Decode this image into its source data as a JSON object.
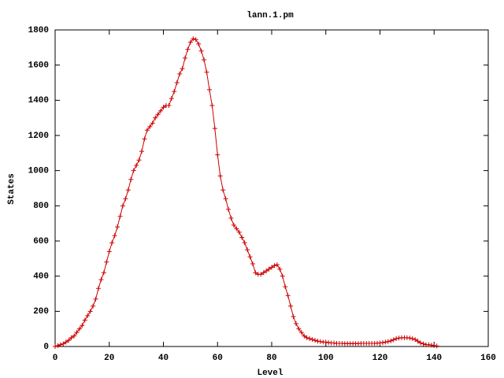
{
  "chart_data": {
    "type": "line",
    "title": "lann.1.pm",
    "xlabel": "Level",
    "ylabel": "States",
    "x": [
      0,
      1,
      2,
      3,
      4,
      5,
      6,
      7,
      8,
      9,
      10,
      11,
      12,
      13,
      14,
      15,
      16,
      17,
      18,
      19,
      20,
      21,
      22,
      23,
      24,
      25,
      26,
      27,
      28,
      29,
      30,
      31,
      32,
      33,
      34,
      35,
      36,
      37,
      38,
      39,
      40,
      41,
      42,
      43,
      44,
      45,
      46,
      47,
      48,
      49,
      50,
      51,
      52,
      53,
      54,
      55,
      56,
      57,
      58,
      59,
      60,
      61,
      62,
      63,
      64,
      65,
      66,
      67,
      68,
      69,
      70,
      71,
      72,
      73,
      74,
      75,
      76,
      77,
      78,
      79,
      80,
      81,
      82,
      83,
      84,
      85,
      86,
      87,
      88,
      89,
      90,
      91,
      92,
      93,
      94,
      95,
      96,
      97,
      98,
      99,
      100,
      101,
      102,
      103,
      104,
      105,
      106,
      107,
      108,
      109,
      110,
      111,
      112,
      113,
      114,
      115,
      116,
      117,
      118,
      119,
      120,
      121,
      122,
      123,
      124,
      125,
      126,
      127,
      128,
      129,
      130,
      131,
      132,
      133,
      134,
      135,
      136,
      137,
      138,
      139,
      140,
      141
    ],
    "values": [
      0,
      5,
      10,
      15,
      25,
      35,
      50,
      60,
      80,
      100,
      120,
      150,
      175,
      200,
      230,
      270,
      330,
      380,
      420,
      480,
      540,
      590,
      630,
      680,
      740,
      800,
      840,
      890,
      950,
      1000,
      1030,
      1060,
      1110,
      1180,
      1230,
      1250,
      1270,
      1300,
      1320,
      1340,
      1360,
      1370,
      1370,
      1410,
      1450,
      1500,
      1550,
      1580,
      1640,
      1690,
      1730,
      1750,
      1745,
      1720,
      1680,
      1630,
      1560,
      1460,
      1370,
      1240,
      1090,
      970,
      890,
      840,
      780,
      730,
      690,
      670,
      650,
      620,
      590,
      550,
      510,
      470,
      420,
      410,
      410,
      420,
      430,
      440,
      450,
      460,
      465,
      440,
      400,
      340,
      290,
      230,
      170,
      130,
      100,
      80,
      60,
      50,
      45,
      40,
      35,
      30,
      28,
      25,
      25,
      22,
      20,
      20,
      18,
      18,
      18,
      17,
      17,
      17,
      17,
      17,
      17,
      18,
      18,
      18,
      18,
      18,
      18,
      19,
      20,
      22,
      25,
      28,
      32,
      38,
      45,
      48,
      50,
      50,
      50,
      48,
      45,
      40,
      30,
      20,
      15,
      10,
      10,
      8,
      5,
      3
    ],
    "color": "#cc0000",
    "xlim": [
      0,
      160
    ],
    "xticks": [
      0,
      20,
      40,
      60,
      80,
      100,
      120,
      140,
      160
    ],
    "ylim": [
      0,
      1800
    ],
    "yticks": [
      0,
      200,
      400,
      600,
      800,
      1000,
      1200,
      1400,
      1600,
      1800
    ],
    "grid": false
  }
}
